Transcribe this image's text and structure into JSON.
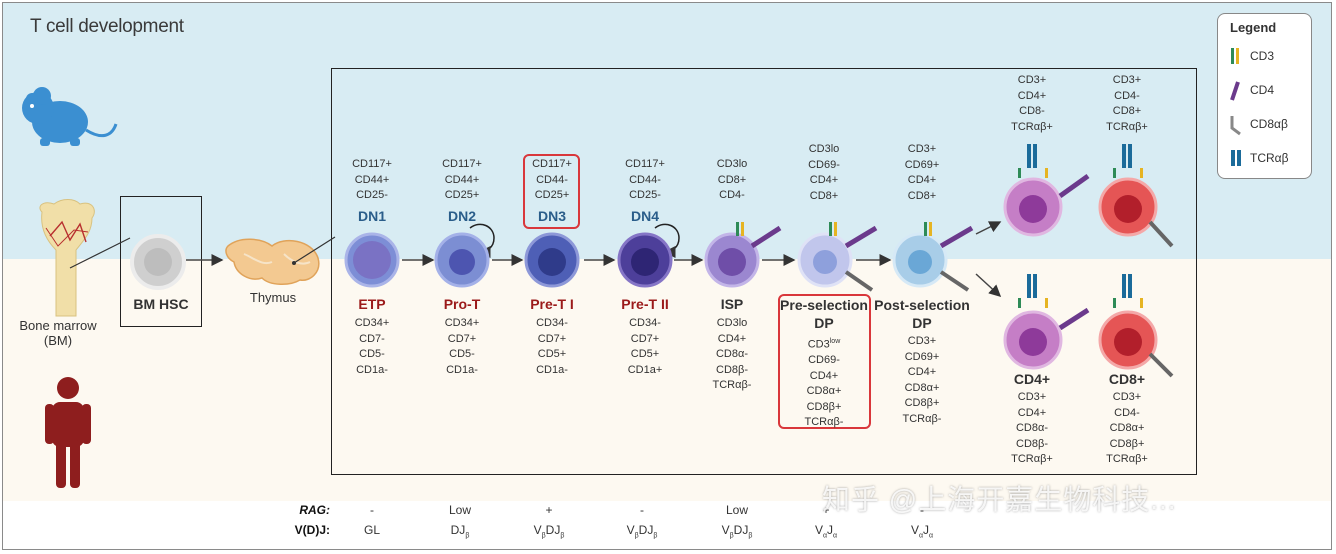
{
  "title": "T cell development",
  "colors": {
    "top_bg": "#d8ecf3",
    "bottom_bg": "#fdf9f1",
    "dn_blue": "#2a5d8a",
    "stage_red": "#9b1a1a",
    "highlight_red": "#d9373b"
  },
  "legend": {
    "title": "Legend",
    "items": [
      "CD3",
      "CD4",
      "CD8αβ",
      "TCRαβ"
    ]
  },
  "left": {
    "bone_marrow": [
      "Bone marrow",
      "(BM)"
    ],
    "bm_hsc": "BM HSC",
    "thymus": "Thymus"
  },
  "stages": [
    {
      "top_markers": [
        "CD117+",
        "CD44+",
        "CD25-"
      ],
      "dn": "DN1",
      "name": [
        "ETP"
      ],
      "bottom_markers": [
        "CD34+",
        "CD7-",
        "CD5-",
        "CD1a-"
      ]
    },
    {
      "top_markers": [
        "CD117+",
        "CD44+",
        "CD25+"
      ],
      "dn": "DN2",
      "name": [
        "Pro-T"
      ],
      "bottom_markers": [
        "CD34+",
        "CD7+",
        "CD5-",
        "CD1a-"
      ]
    },
    {
      "top_markers": [
        "CD117+",
        "CD44-",
        "CD25+"
      ],
      "dn": "DN3",
      "name": [
        "Pre-T I"
      ],
      "bottom_markers": [
        "CD34-",
        "CD7+",
        "CD5+",
        "CD1a-"
      ]
    },
    {
      "top_markers": [
        "CD117+",
        "CD44-",
        "CD25-"
      ],
      "dn": "DN4",
      "name": [
        "Pre-T II"
      ],
      "bottom_markers": [
        "CD34-",
        "CD7+",
        "CD5+",
        "CD1a+"
      ]
    },
    {
      "top_markers": [
        "CD3lo",
        "CD8+",
        "CD4-"
      ],
      "dn": "",
      "name": [
        "ISP"
      ],
      "bottom_markers": [
        "CD3lo",
        "CD4+",
        "CD8α-",
        "CD8β-",
        "TCRαβ-"
      ]
    },
    {
      "top_markers": [
        "CD3lo",
        "CD69-",
        "CD4+",
        "CD8+"
      ],
      "dn": "",
      "name": [
        "Pre-selection",
        "DP"
      ],
      "bottom_markers": [
        "CD3",
        "CD69-",
        "CD4+",
        "CD8α+",
        "CD8β+",
        "TCRαβ-"
      ],
      "sup_first": "low"
    },
    {
      "top_markers": [
        "CD3+",
        "CD69+",
        "CD4+",
        "CD8+"
      ],
      "dn": "",
      "name": [
        "Post-selection",
        "DP"
      ],
      "bottom_markers": [
        "CD3+",
        "CD69+",
        "CD4+",
        "CD8α+",
        "CD8β+",
        "TCRαβ-"
      ]
    }
  ],
  "single_positive": {
    "top_cd4": [
      "CD3+",
      "CD4+",
      "CD8-",
      "TCRαβ+"
    ],
    "top_cd8": [
      "CD3+",
      "CD4-",
      "CD8+",
      "TCRαβ+"
    ],
    "cd4_name": "CD4+",
    "cd8_name": "CD8+",
    "bottom_cd4": [
      "CD3+",
      "CD4+",
      "CD8α-",
      "CD8β-",
      "TCRαβ+"
    ],
    "bottom_cd8": [
      "CD3+",
      "CD4-",
      "CD8α+",
      "CD8β+",
      "TCRαβ+"
    ]
  },
  "footer": {
    "rag_label": "RAG:",
    "vdj_label": "V(D)J:",
    "rag_values": [
      "-",
      "Low",
      "+",
      "-",
      "Low",
      "+",
      "-"
    ],
    "vdj_values": [
      {
        "main": "GL",
        "parts": []
      },
      {
        "main": "",
        "parts": [
          [
            "DJ",
            "β"
          ]
        ]
      },
      {
        "main": "",
        "parts": [
          [
            "V",
            "β"
          ],
          [
            "DJ",
            "β"
          ]
        ]
      },
      {
        "main": "",
        "parts": [
          [
            "V",
            "β"
          ],
          [
            "DJ",
            "β"
          ]
        ]
      },
      {
        "main": "",
        "parts": [
          [
            "V",
            "β"
          ],
          [
            "DJ",
            "β"
          ]
        ]
      },
      {
        "main": "",
        "parts": [
          [
            "V",
            "α"
          ],
          [
            "J",
            "α"
          ]
        ]
      },
      {
        "main": "",
        "parts": [
          [
            "V",
            "α"
          ],
          [
            "J",
            "α"
          ]
        ]
      }
    ]
  },
  "watermark": "知乎 @上海开嘉生物科技..."
}
